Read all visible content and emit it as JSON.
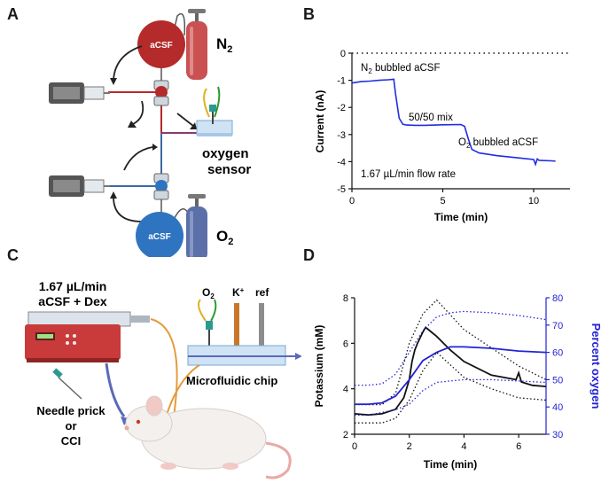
{
  "panels": {
    "A": {
      "letter": "A",
      "acsf_top": "aCSF",
      "acsf_bottom": "aCSF",
      "gas_top": "N",
      "gas_top_sub": "2",
      "gas_bottom": "O",
      "gas_bottom_sub": "2",
      "sensor_line1": "oxygen",
      "sensor_line2": "sensor",
      "colors": {
        "acsf_top": "#b52a2a",
        "acsf_bottom": "#2f74c0",
        "n2_cylinder": "#c95151",
        "o2_cylinder": "#5b6fa8"
      }
    },
    "B": {
      "letter": "B",
      "annotations": {
        "n2_prefix": "N",
        "n2_sub": "2",
        "n2_suffix": " bubbled aCSF",
        "mix": "50/50 mix",
        "o2_prefix": "O",
        "o2_sub": "2",
        "o2_suffix": " bubbled aCSF",
        "flow": "1.67 µL/min flow rate"
      }
    },
    "C": {
      "letter": "C",
      "pump_line1": "1.67 µL/min",
      "pump_line2": "aCSF + Dex",
      "electrode_o2": "O",
      "electrode_o2_sub": "2",
      "electrode_k": "K",
      "electrode_k_sup": "+",
      "electrode_ref": "ref",
      "chip_label": "Microfluidic chip",
      "injury_line1": "Needle prick",
      "injury_line2": "or",
      "injury_line3": "CCI"
    },
    "D": {
      "letter": "D"
    }
  },
  "chart_data": [
    {
      "panel": "B",
      "type": "line",
      "xlabel": "Time  (min)",
      "ylabel": "Current  (nA)",
      "xlim": [
        0,
        12
      ],
      "ylim": [
        -5,
        0
      ],
      "xticks": [
        0,
        5,
        10
      ],
      "yticks": [
        0,
        -1,
        -2,
        -3,
        -4,
        -5
      ],
      "zero_line": "dotted",
      "series": [
        {
          "color": "#1f2de0",
          "x": [
            0,
            0.5,
            1.0,
            1.5,
            2.0,
            2.3,
            2.4,
            2.6,
            2.8,
            3.0,
            3.5,
            4.0,
            5.0,
            6.0,
            6.2,
            6.4,
            6.6,
            7.0,
            8.0,
            9.0,
            10.0,
            10.1,
            10.2,
            10.3,
            11.0,
            11.2
          ],
          "y": [
            -1.1,
            -1.05,
            -1.03,
            -1.0,
            -0.98,
            -0.96,
            -1.5,
            -2.4,
            -2.62,
            -2.65,
            -2.66,
            -2.66,
            -2.64,
            -2.63,
            -2.7,
            -3.15,
            -3.55,
            -3.68,
            -3.78,
            -3.85,
            -3.92,
            -4.1,
            -3.9,
            -3.95,
            -3.97,
            -3.98
          ]
        }
      ]
    },
    {
      "panel": "D",
      "type": "line",
      "xlabel": "Time (min)",
      "ylabel": "Potassium (mM)",
      "y2label": "Percent oxygen",
      "xlim": [
        0,
        7
      ],
      "ylim": [
        2,
        8
      ],
      "y2lim": [
        30,
        80
      ],
      "xticks": [
        0,
        2,
        4,
        6
      ],
      "yticks": [
        2,
        4,
        6,
        8
      ],
      "y2ticks": [
        30,
        40,
        50,
        60,
        70,
        80
      ],
      "colors": {
        "potassium": "#111111",
        "oxygen": "#2323d6"
      },
      "series": [
        {
          "axis": "left",
          "style": "solid",
          "color": "#111111",
          "x": [
            0,
            0.5,
            1.0,
            1.5,
            1.8,
            2.0,
            2.1,
            2.2,
            2.3,
            2.5,
            2.6,
            2.8,
            3.0,
            3.5,
            4.0,
            5.0,
            5.9,
            6.0,
            6.1,
            6.5,
            7.0
          ],
          "y": [
            2.9,
            2.85,
            2.9,
            3.1,
            3.6,
            4.4,
            5.2,
            5.7,
            6.0,
            6.5,
            6.7,
            6.5,
            6.3,
            5.7,
            5.2,
            4.6,
            4.4,
            4.7,
            4.3,
            4.15,
            4.1
          ]
        },
        {
          "axis": "left",
          "style": "dotted",
          "color": "#111111",
          "x": [
            0,
            1.0,
            1.5,
            2.0,
            2.5,
            3.0,
            4.0,
            5.0,
            6.0,
            7.0
          ],
          "y": [
            3.3,
            3.3,
            3.8,
            6.0,
            7.3,
            7.9,
            6.6,
            5.8,
            5.0,
            4.4
          ]
        },
        {
          "axis": "left",
          "style": "dotted",
          "color": "#111111",
          "x": [
            0,
            1.0,
            1.5,
            2.0,
            2.5,
            3.0,
            4.0,
            5.0,
            6.0,
            7.0
          ],
          "y": [
            2.5,
            2.5,
            2.7,
            3.5,
            4.8,
            5.6,
            4.5,
            4.0,
            3.6,
            3.5
          ]
        },
        {
          "axis": "right",
          "style": "solid",
          "color": "#2323d6",
          "x": [
            0,
            0.5,
            1.0,
            1.5,
            2.0,
            2.5,
            3.0,
            3.5,
            4.0,
            5.0,
            6.0,
            7.0
          ],
          "y": [
            41,
            41,
            41.5,
            44,
            50,
            57,
            60,
            62,
            62,
            61.5,
            60.5,
            60
          ]
        },
        {
          "axis": "right",
          "style": "dotted",
          "color": "#2323d6",
          "x": [
            0,
            0.5,
            1.0,
            1.5,
            2.0,
            2.5,
            3.0,
            3.5,
            4.0,
            5.0,
            6.0,
            7.0
          ],
          "y": [
            48,
            48,
            48.5,
            52,
            60,
            68,
            73,
            74.5,
            75,
            74.5,
            73.5,
            72
          ]
        },
        {
          "axis": "right",
          "style": "dotted",
          "color": "#2323d6",
          "x": [
            0,
            0.5,
            1.0,
            1.5,
            2.0,
            2.5,
            3.0,
            3.5,
            4.0,
            5.0,
            6.0,
            7.0
          ],
          "y": [
            37,
            37,
            38,
            39,
            41,
            46,
            49,
            49.5,
            50,
            50,
            49.5,
            49
          ]
        }
      ]
    }
  ]
}
